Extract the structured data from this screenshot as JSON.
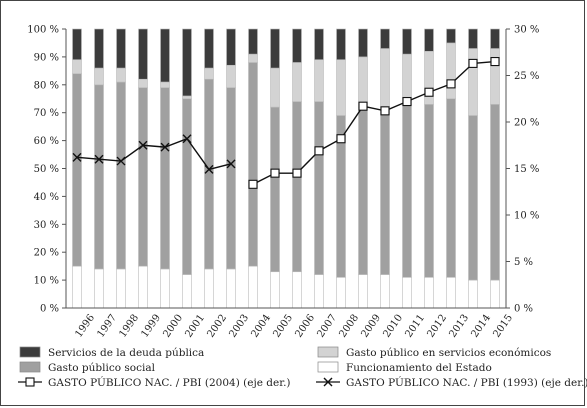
{
  "chart_data": {
    "type": "bar",
    "stacked": true,
    "percent_stacked": true,
    "categories": [
      "1996",
      "1997",
      "1998",
      "1999",
      "2000",
      "2001",
      "2002",
      "2003",
      "2004",
      "2005",
      "2006",
      "2007",
      "2008",
      "2009",
      "2010",
      "2011",
      "2012",
      "2013",
      "2014",
      "2015"
    ],
    "series": [
      {
        "name": "Funcionamiento del Estado",
        "color": "#ffffff",
        "values": [
          15,
          14,
          14,
          15,
          14,
          12,
          14,
          14,
          15,
          13,
          13,
          12,
          11,
          12,
          12,
          11,
          11,
          11,
          10,
          10
        ]
      },
      {
        "name": "Gasto público social",
        "color": "#a0a0a0",
        "values": [
          69,
          66,
          67,
          64,
          65,
          63,
          68,
          65,
          73,
          59,
          61,
          62,
          58,
          60,
          59,
          62,
          62,
          64,
          59,
          63
        ]
      },
      {
        "name": "Gasto público en servicios económicos",
        "color": "#d3d3d3",
        "values": [
          5,
          6,
          5,
          3,
          2,
          1,
          4,
          8,
          3,
          14,
          14,
          15,
          20,
          18,
          22,
          18,
          19,
          20,
          24,
          20
        ]
      },
      {
        "name": "Servicios de la deuda pública",
        "color": "#3c3c3c",
        "values": [
          11,
          14,
          14,
          18,
          19,
          24,
          14,
          13,
          9,
          14,
          12,
          11,
          11,
          10,
          7,
          9,
          8,
          5,
          7,
          7
        ]
      }
    ],
    "lines": [
      {
        "name": "GASTO PÚBLICO NAC. / PBI (1993) (eje der.)",
        "marker": "x",
        "values": [
          16.2,
          16.0,
          15.8,
          17.5,
          17.3,
          18.2,
          14.9,
          15.5,
          null,
          null,
          null,
          null,
          null,
          null,
          null,
          null,
          null,
          null,
          null,
          null
        ]
      },
      {
        "name": "GASTO PÚBLICO NAC. / PBI (2004) (eje der.)",
        "marker": "square",
        "values": [
          null,
          null,
          null,
          null,
          null,
          null,
          null,
          null,
          13.3,
          14.5,
          14.5,
          16.9,
          18.2,
          21.7,
          21.2,
          22.2,
          23.2,
          24.1,
          26.3,
          26.5
        ]
      }
    ],
    "y_left": {
      "min": 0,
      "max": 100,
      "ticks": [
        "0 %",
        "10 %",
        "20 %",
        "30 %",
        "40 %",
        "50 %",
        "60 %",
        "70 %",
        "80 %",
        "90 %",
        "100 %"
      ]
    },
    "y_right": {
      "min": 0,
      "max": 30,
      "ticks": [
        "0 %",
        "5 %",
        "10 %",
        "15 %",
        "20 %",
        "25 %",
        "30 %"
      ]
    },
    "grid": false,
    "legend_position": "bottom",
    "legend_order": [
      "Servicios de la deuda pública",
      "Gasto público en servicios económicos",
      "Gasto público social",
      "Funcionamiento del Estado",
      "GASTO PÚBLICO NAC. / PBI (2004) (eje der.)",
      "GASTO PÚBLICO NAC. / PBI (1993) (eje der.)"
    ]
  }
}
